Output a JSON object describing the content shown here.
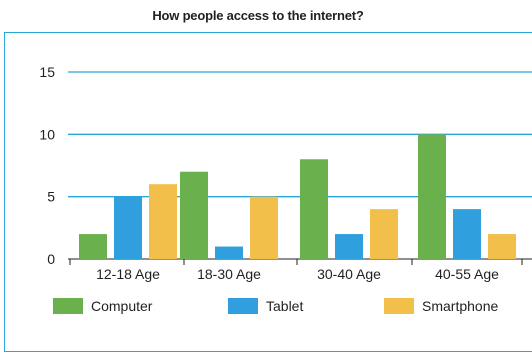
{
  "chart_data": {
    "type": "bar",
    "title": "How people access to the internet?",
    "categories": [
      "12-18 Age",
      "18-30 Age",
      "30-40 Age",
      "40-55 Age"
    ],
    "series": [
      {
        "name": "Computer",
        "color": "#6ab04c",
        "values": [
          2,
          7,
          8,
          10
        ]
      },
      {
        "name": "Tablet",
        "color": "#2f9fdd",
        "values": [
          5,
          1,
          2,
          4
        ]
      },
      {
        "name": "Smartphone",
        "color": "#f2c04a",
        "values": [
          6,
          5,
          4,
          2
        ]
      }
    ],
    "ylim": [
      0,
      15
    ],
    "yticks": [
      0,
      5,
      10,
      15
    ],
    "grid": true,
    "legend_position": "bottom"
  }
}
